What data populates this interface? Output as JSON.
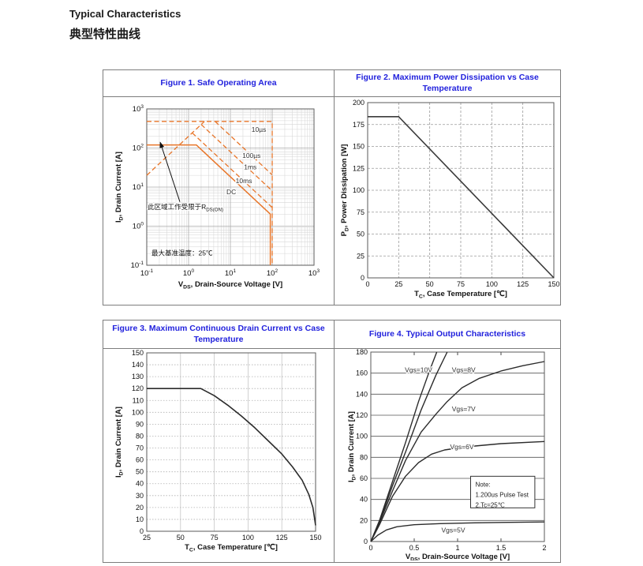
{
  "page": {
    "heading_en": "Typical Characteristics",
    "heading_zh": "典型特性曲线"
  },
  "colors": {
    "title_blue": "#2222dd",
    "soa_orange": "#e8762a",
    "line_dark": "#333333"
  },
  "chart_data": [
    {
      "type": "line",
      "title": "Figure 1. Safe Operating Area",
      "xscale": "log",
      "yscale": "log",
      "xlim": [
        0.1,
        1000
      ],
      "ylim": [
        0.1,
        1000
      ],
      "xtick_exponents": [
        -1,
        0,
        1,
        2,
        3
      ],
      "ytick_exponents": [
        -1,
        0,
        1,
        2,
        3
      ],
      "xlabel": {
        "sym": "V",
        "sub": "DS",
        "rest": ", Drain-Source Voltage [V]"
      },
      "ylabel": {
        "sym": "I",
        "sub": "D",
        "rest": ", Drain Current [A]"
      },
      "color": "#e8762a",
      "series": [
        {
          "name": "pulsed-current-limit-10us",
          "dash": true,
          "width": 1.3,
          "points": [
            [
              0.1,
              480
            ],
            [
              100,
              480
            ],
            [
              100,
              0.1
            ]
          ]
        },
        {
          "name": "rdson-limit",
          "dash": true,
          "width": 1.3,
          "points": [
            [
              0.1,
              20
            ],
            [
              2.4,
              480
            ]
          ]
        },
        {
          "name": "100us",
          "dash": true,
          "width": 1.3,
          "points": [
            [
              4.3,
              480
            ],
            [
              100,
              20.6
            ]
          ]
        },
        {
          "name": "1ms",
          "dash": true,
          "width": 1.3,
          "points": [
            [
              2.0,
              400
            ],
            [
              100,
              8.0
            ]
          ]
        },
        {
          "name": "10ms",
          "dash": true,
          "width": 1.3,
          "points": [
            [
              1.22,
              244
            ],
            [
              100,
              3.0
            ]
          ]
        },
        {
          "name": "dc",
          "dash": false,
          "width": 1.5,
          "points": [
            [
              0.1,
              120
            ],
            [
              1.53,
              120
            ],
            [
              90,
              2.04
            ],
            [
              90,
              0.1
            ]
          ]
        }
      ],
      "series_labels": [
        {
          "text": "10µs",
          "x": 48,
          "y": 300
        },
        {
          "text": "100µs",
          "x": 32,
          "y": 64
        },
        {
          "text": "1ms",
          "x": 30,
          "y": 33
        },
        {
          "text": "10ms",
          "x": 21,
          "y": 14.5
        },
        {
          "text": "DC",
          "x": 10.5,
          "y": 7.6
        }
      ],
      "annotations": {
        "arrow": {
          "x1": 0.62,
          "y1": 4.2,
          "x2": 0.21,
          "y2": 140
        },
        "arrow_text": {
          "pre": "此区域工作受限于R",
          "sub": "DS(ON)",
          "x": 0.105,
          "y": 2.7
        },
        "note_text": {
          "text": "最大基准温度：25℃",
          "x": 0.13,
          "y": 0.18
        }
      }
    },
    {
      "type": "line",
      "title": "Figure 2. Maximum Power Dissipation vs Case Temperature",
      "xlim": [
        0,
        150
      ],
      "ylim": [
        0,
        200
      ],
      "xticks": [
        0,
        25,
        50,
        75,
        100,
        125,
        150
      ],
      "yticks": [
        0,
        25,
        50,
        75,
        100,
        125,
        150,
        175,
        200
      ],
      "xlabel": {
        "sym": "T",
        "sub": "C",
        "rest": ", Case Temperature [℃]"
      },
      "ylabel": {
        "sym": "P",
        "sub": "D",
        "rest": ", Power Dissipation [W]"
      },
      "grid": {
        "x": "dash",
        "y": "dash"
      },
      "color": "#3a3a3a",
      "series": [
        {
          "name": "power-dissipation-vs-tc",
          "width": 1.6,
          "points": [
            [
              0,
              184
            ],
            [
              25,
              184
            ],
            [
              150,
              0
            ]
          ]
        }
      ]
    },
    {
      "type": "line",
      "title": "Figure 3. Maximum Continuous Drain Current vs Case Temperature",
      "xlim": [
        25,
        150
      ],
      "ylim": [
        0,
        150
      ],
      "xticks": [
        25,
        50,
        75,
        100,
        125,
        150
      ],
      "yticks": [
        0,
        10,
        20,
        30,
        40,
        50,
        60,
        70,
        80,
        90,
        100,
        110,
        120,
        130,
        140,
        150
      ],
      "xlabel": {
        "sym": "T",
        "sub": "C",
        "rest": ", Case Temperature [℃]"
      },
      "ylabel": {
        "sym": "I",
        "sub": "D",
        "rest": ", Drain Current [A]"
      },
      "grid": {
        "x": "solid-light",
        "y": "dot"
      },
      "color": "#2b2b2b",
      "series": [
        {
          "name": "drain-current-vs-tc",
          "width": 1.6,
          "points": [
            [
              25,
              120
            ],
            [
              65,
              120
            ],
            [
              75,
              114
            ],
            [
              85,
              106
            ],
            [
              95,
              97
            ],
            [
              105,
              87
            ],
            [
              115,
              76
            ],
            [
              125,
              65
            ],
            [
              133,
              54
            ],
            [
              140,
              43
            ],
            [
              145,
              31
            ],
            [
              148,
              20
            ],
            [
              150,
              5
            ]
          ]
        }
      ]
    },
    {
      "type": "line",
      "title": "Figure 4. Typical Output Characteristics",
      "xlim": [
        0,
        2
      ],
      "ylim": [
        0,
        180
      ],
      "xticks": [
        0,
        0.5,
        1,
        1.5,
        2
      ],
      "yticks": [
        0,
        20,
        40,
        60,
        80,
        100,
        120,
        140,
        160,
        180
      ],
      "xlabel": {
        "sym": "V",
        "sub": "DS",
        "rest": ", Drain-Source Voltage [V]"
      },
      "ylabel": {
        "sym": "I",
        "sub": "D",
        "rest": ", Drain Current [A]"
      },
      "grid": {
        "x": "ticks",
        "y": "solid-dark"
      },
      "color": "#2b2b2b",
      "series": [
        {
          "name": "vgs-10v",
          "width": 1.4,
          "points": [
            [
              0,
              0
            ],
            [
              0.1,
              20
            ],
            [
              0.25,
              57
            ],
            [
              0.4,
              94
            ],
            [
              0.55,
              133
            ],
            [
              0.68,
              163
            ],
            [
              0.76,
              180
            ]
          ]
        },
        {
          "name": "vgs-8v",
          "width": 1.4,
          "points": [
            [
              0,
              0
            ],
            [
              0.1,
              19
            ],
            [
              0.25,
              53
            ],
            [
              0.4,
              85
            ],
            [
              0.58,
              125
            ],
            [
              0.75,
              158
            ],
            [
              0.88,
              180
            ]
          ]
        },
        {
          "name": "vgs-7v",
          "width": 1.4,
          "points": [
            [
              0,
              0
            ],
            [
              0.1,
              18
            ],
            [
              0.25,
              48
            ],
            [
              0.4,
              77
            ],
            [
              0.58,
              104
            ],
            [
              0.75,
              121
            ],
            [
              0.88,
              133
            ],
            [
              1.05,
              146
            ],
            [
              1.25,
              155
            ],
            [
              1.5,
              162
            ],
            [
              1.75,
              167
            ],
            [
              2,
              171
            ]
          ]
        },
        {
          "name": "vgs-6v",
          "width": 1.4,
          "points": [
            [
              0,
              0
            ],
            [
              0.1,
              16
            ],
            [
              0.25,
              43
            ],
            [
              0.4,
              62
            ],
            [
              0.55,
              75
            ],
            [
              0.7,
              83
            ],
            [
              0.85,
              87
            ],
            [
              1.1,
              90
            ],
            [
              1.5,
              93
            ],
            [
              2,
              95
            ]
          ]
        },
        {
          "name": "vgs-5v",
          "width": 1.4,
          "points": [
            [
              0,
              0
            ],
            [
              0.08,
              6
            ],
            [
              0.18,
              11
            ],
            [
              0.3,
              14
            ],
            [
              0.5,
              16
            ],
            [
              0.8,
              17
            ],
            [
              1.2,
              17.8
            ],
            [
              1.6,
              18.2
            ],
            [
              2,
              18.6
            ]
          ]
        }
      ],
      "series_labels": [
        {
          "text": "Vgs=10V",
          "x": 0.55,
          "y": 163
        },
        {
          "text": "Vgs=8V",
          "x": 1.07,
          "y": 163
        },
        {
          "text": "Vgs=7V",
          "x": 1.07,
          "y": 126
        },
        {
          "text": "Vgs=6V",
          "x": 1.05,
          "y": 90
        },
        {
          "text": "Vgs=5V",
          "x": 0.95,
          "y": 11
        }
      ],
      "note": {
        "x1": 1.15,
        "y1": 32,
        "x2": 1.89,
        "y2": 62,
        "lines": [
          "Note:",
          "1.200us Pulse Test",
          "2.Tc=25℃"
        ]
      }
    }
  ]
}
